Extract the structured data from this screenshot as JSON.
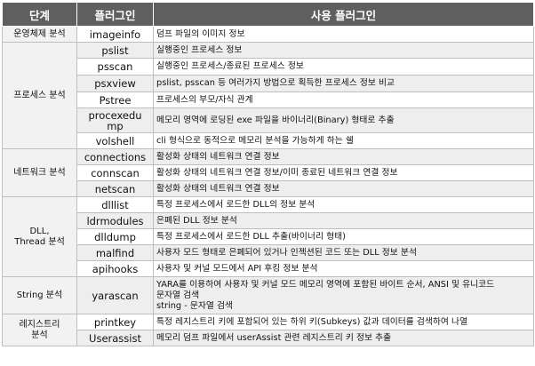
{
  "headers": {
    "stage": "단계",
    "plugin": "플러그인",
    "usage": "사용 플러그인"
  },
  "groups": [
    {
      "stage": "운영체제 분석",
      "rows": [
        {
          "plugin": "imageinfo",
          "desc": [
            "덤프 파일의 이미지 정보"
          ]
        }
      ]
    },
    {
      "stage": "프로세스 분석",
      "rows": [
        {
          "plugin": "pslist",
          "desc": [
            "실행중인 프로세스 정보"
          ]
        },
        {
          "plugin": "psscan",
          "desc": [
            "실행중인 프로세스/종료된 프로세스 정보"
          ]
        },
        {
          "plugin": "psxview",
          "desc": [
            "pslist, psscan 등 여러가지 방법으로 획득한 프로세스 정보 비교"
          ]
        },
        {
          "plugin": "Pstree",
          "desc": [
            "프로세스의 부모/자식 관계"
          ]
        },
        {
          "plugin": "procexedump",
          "plugin_lines": [
            "procexedu",
            "mp"
          ],
          "desc": [
            "메모리 영역에 로딩된 exe 파일을 바이너리(Binary) 형태로 추출"
          ]
        },
        {
          "plugin": "volshell",
          "desc": [
            "cli 형식으로 동적으로 메모리 분석을 가능하게 하는 쉘"
          ]
        }
      ]
    },
    {
      "stage": "네트워크 분석",
      "rows": [
        {
          "plugin": "connections",
          "desc": [
            "활성화 상태의 네트워크 연결 정보"
          ]
        },
        {
          "plugin": "connscan",
          "desc": [
            "활성화 상태의 네트워크 연결 정보/이미 종료된 네트워크 연결 정보"
          ]
        },
        {
          "plugin": "netscan",
          "desc": [
            "활성화 상태의 네트워크 연결 정보"
          ]
        }
      ]
    },
    {
      "stage": "DLL, Thread 분석",
      "stage_lines": [
        "DLL,",
        "Thread 분석"
      ],
      "rows": [
        {
          "plugin": "dlllist",
          "desc": [
            "특정 프로세스에서 로드한 DLL의 정보 분석"
          ]
        },
        {
          "plugin": "ldrmodules",
          "desc": [
            "은폐된 DLL 정보 분석"
          ]
        },
        {
          "plugin": "dlldump",
          "desc": [
            "특정 프로세스에서 로드한 DLL 추출(바이너리 형태)"
          ]
        },
        {
          "plugin": "malfind",
          "desc": [
            "사용자 모드 형태로 은폐되어 있거나 인젝션된 코드 또는 DLL 정보 분석"
          ]
        },
        {
          "plugin": "apihooks",
          "desc": [
            "사용자 및 커널 모드에서 API 후킹 정보 분석"
          ]
        }
      ]
    },
    {
      "stage": "String 분석",
      "rows": [
        {
          "plugin": "yarascan",
          "desc": [
            "YARA를 이용하여 사용자 및 커널 모드 메모리 영역에 포함된 바이트 순서, ANSI 및 유니코드",
            "문자열 검색",
            "string - 문자열 검색"
          ]
        }
      ]
    },
    {
      "stage": "레지스트리 분석",
      "stage_lines": [
        "레지스트리",
        "분석"
      ],
      "rows": [
        {
          "plugin": "printkey",
          "desc": [
            "특정 레지스트리 키에 포함되어 있는 하위 키(Subkeys) 값과 데이터를 검색하여 나열"
          ]
        },
        {
          "plugin": "Userassist",
          "desc": [
            "메모리 덤프 파일에서 userAssist 관련 레지스트리 키 정보 추출"
          ]
        }
      ]
    }
  ]
}
